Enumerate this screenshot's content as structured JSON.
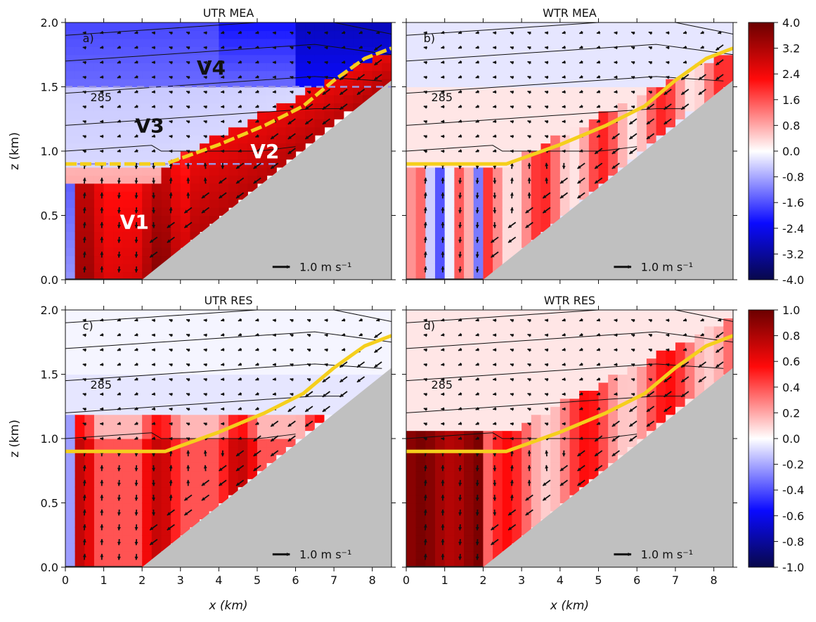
{
  "chart_data": [
    {
      "type": "heatmap",
      "panel_label": "a)",
      "title": "UTR MEA",
      "ylabel": "z (km)",
      "xlabel": "",
      "xlim": [
        0,
        8.5
      ],
      "ylim": [
        0,
        2.0
      ],
      "xticks": [
        "0",
        "1",
        "2",
        "3",
        "4",
        "5",
        "6",
        "7",
        "8"
      ],
      "yticks": [
        "0.0",
        "0.5",
        "1.0",
        "1.5",
        "2.0"
      ],
      "colorbar": "top",
      "contour_label": "285",
      "reference_vector": "1.0 m s⁻¹",
      "regions": [
        "V1",
        "V2",
        "V3",
        "V4"
      ],
      "dashed_lines": [
        0.9,
        1.5
      ],
      "topography": [
        [
          0,
          0
        ],
        [
          2,
          0
        ],
        [
          8.5,
          1.55
        ]
      ],
      "yellow_line": [
        [
          0,
          0.9
        ],
        [
          2.6,
          0.9
        ],
        [
          4,
          1.05
        ],
        [
          5.2,
          1.2
        ],
        [
          6.2,
          1.35
        ],
        [
          7,
          1.55
        ],
        [
          7.8,
          1.72
        ],
        [
          8.5,
          1.8
        ]
      ],
      "grid": false
    },
    {
      "type": "heatmap",
      "panel_label": "b)",
      "title": "WTR MEA",
      "xlabel": "",
      "ylabel": "",
      "xlim": [
        0,
        8.5
      ],
      "ylim": [
        0,
        2.0
      ],
      "xticks": [
        "0",
        "1",
        "2",
        "3",
        "4",
        "5",
        "6",
        "7",
        "8"
      ],
      "yticks": [
        "0.0",
        "0.5",
        "1.0",
        "1.5",
        "2.0"
      ],
      "colorbar": "top",
      "contour_label": "285",
      "reference_vector": "1.0 m s⁻¹",
      "topography": [
        [
          0,
          0
        ],
        [
          2,
          0
        ],
        [
          8.5,
          1.55
        ]
      ],
      "yellow_line": [
        [
          0,
          0.9
        ],
        [
          2.6,
          0.9
        ],
        [
          4,
          1.05
        ],
        [
          5.2,
          1.2
        ],
        [
          6.2,
          1.35
        ],
        [
          7,
          1.55
        ],
        [
          7.8,
          1.72
        ],
        [
          8.5,
          1.8
        ]
      ]
    },
    {
      "type": "heatmap",
      "panel_label": "c)",
      "title": "UTR RES",
      "xlabel": "x (km)",
      "ylabel": "z (km)",
      "xlim": [
        0,
        8.5
      ],
      "ylim": [
        0,
        2.0
      ],
      "xticks": [
        "0",
        "1",
        "2",
        "3",
        "4",
        "5",
        "6",
        "7",
        "8"
      ],
      "yticks": [
        "0.0",
        "0.5",
        "1.0",
        "1.5",
        "2.0"
      ],
      "colorbar": "bottom",
      "contour_label": "285",
      "reference_vector": "1.0 m s⁻¹",
      "topography": [
        [
          0,
          0
        ],
        [
          2,
          0
        ],
        [
          8.5,
          1.55
        ]
      ],
      "yellow_line": [
        [
          0,
          0.9
        ],
        [
          2.6,
          0.9
        ],
        [
          4,
          1.05
        ],
        [
          5.2,
          1.2
        ],
        [
          6.2,
          1.35
        ],
        [
          7,
          1.55
        ],
        [
          7.8,
          1.72
        ],
        [
          8.5,
          1.8
        ]
      ]
    },
    {
      "type": "heatmap",
      "panel_label": "d)",
      "title": "WTR RES",
      "xlabel": "x (km)",
      "ylabel": "",
      "xlim": [
        0,
        8.5
      ],
      "ylim": [
        0,
        2.0
      ],
      "xticks": [
        "0",
        "1",
        "2",
        "3",
        "4",
        "5",
        "6",
        "7",
        "8"
      ],
      "yticks": [
        "0.0",
        "0.5",
        "1.0",
        "1.5",
        "2.0"
      ],
      "colorbar": "bottom",
      "contour_label": "285",
      "reference_vector": "1.0 m s⁻¹",
      "topography": [
        [
          0,
          0
        ],
        [
          2,
          0
        ],
        [
          8.5,
          1.55
        ]
      ],
      "yellow_line": [
        [
          0,
          0.9
        ],
        [
          2.6,
          0.9
        ],
        [
          4,
          1.05
        ],
        [
          5.2,
          1.2
        ],
        [
          6.2,
          1.35
        ],
        [
          7,
          1.55
        ],
        [
          7.8,
          1.72
        ],
        [
          8.5,
          1.8
        ]
      ]
    }
  ],
  "colorbars": {
    "top": {
      "ticks": [
        "4.0",
        "3.2",
        "2.4",
        "1.6",
        "0.8",
        "0.0",
        "-0.8",
        "-1.6",
        "-2.4",
        "-3.2",
        "-4.0"
      ],
      "range": [
        -4.0,
        4.0
      ]
    },
    "bottom": {
      "ticks": [
        "1.0",
        "0.8",
        "0.6",
        "0.4",
        "0.2",
        "0.0",
        "-0.2",
        "-0.4",
        "-0.6",
        "-0.8",
        "-1.0"
      ],
      "range": [
        -1.0,
        1.0
      ]
    }
  },
  "colors": {
    "topography": "#c0c0c0",
    "yellow_line": "#f5cf1c",
    "dashed_line": "#9a94e0",
    "contour": "#111111",
    "colormap": [
      "#08084a",
      "#0a0aff",
      "#ffffff",
      "#ff0a0a",
      "#6b0000"
    ]
  }
}
